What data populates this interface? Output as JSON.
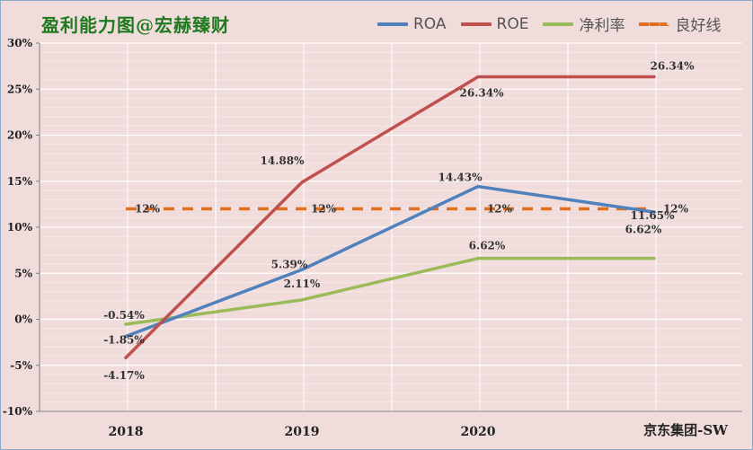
{
  "title": "盈利能力图@宏赫臻财",
  "footer": "京东集团-SW",
  "chart_data": {
    "type": "line",
    "categories": [
      "2018",
      "2019",
      "2020",
      ""
    ],
    "ylim": [
      -10,
      30
    ],
    "yticks": [
      "-10%",
      "-5%",
      "0%",
      "5%",
      "10%",
      "15%",
      "20%",
      "25%",
      "30%"
    ],
    "grid": true,
    "legend_position": "top-right",
    "series": [
      {
        "name": "ROA",
        "color": "#4f81bd",
        "dashed": false,
        "values": [
          -1.85,
          5.39,
          14.43,
          11.65
        ],
        "labels": [
          "-1.85%",
          "5.39%",
          "14.43%",
          "11.65%"
        ]
      },
      {
        "name": "ROE",
        "color": "#c0504d",
        "dashed": false,
        "values": [
          -4.17,
          14.88,
          26.34,
          26.34
        ],
        "labels": [
          "-4.17%",
          "14.88%",
          "26.34%",
          "26.34%"
        ]
      },
      {
        "name": "净利率",
        "color": "#9bbb59",
        "dashed": false,
        "values": [
          -0.54,
          2.11,
          6.62,
          6.62
        ],
        "labels": [
          "-0.54%",
          "2.11%",
          "6.62%",
          "6.62%"
        ]
      },
      {
        "name": "良好线",
        "color": "#e07020",
        "dashed": true,
        "values": [
          12,
          12,
          12,
          12
        ],
        "labels": [
          "12%",
          "12%",
          "12%",
          "12%"
        ]
      }
    ]
  }
}
